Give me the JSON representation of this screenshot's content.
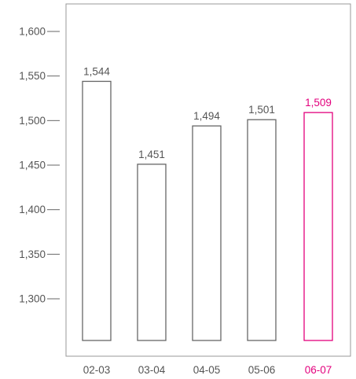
{
  "chart_data": {
    "type": "bar",
    "categories": [
      "02-03",
      "03-04",
      "04-05",
      "05-06",
      "06-07"
    ],
    "values": [
      1544,
      1451,
      1494,
      1501,
      1509
    ],
    "value_labels": [
      "1,544",
      "1,451",
      "1,494",
      "1,501",
      "1,509"
    ],
    "yticks": [
      1300,
      1350,
      1400,
      1450,
      1500,
      1550,
      1600
    ],
    "ytick_labels": [
      "1,300",
      "1,350",
      "1,400",
      "1,450",
      "1,500",
      "1,550",
      "1,600"
    ],
    "ylim": [
      1250,
      1635
    ],
    "title": "",
    "xlabel": "",
    "ylabel": "",
    "grid": false,
    "highlight_index": 4,
    "colors": {
      "default": "#666666",
      "highlight": "#e3007d",
      "frame": "#999999"
    }
  }
}
